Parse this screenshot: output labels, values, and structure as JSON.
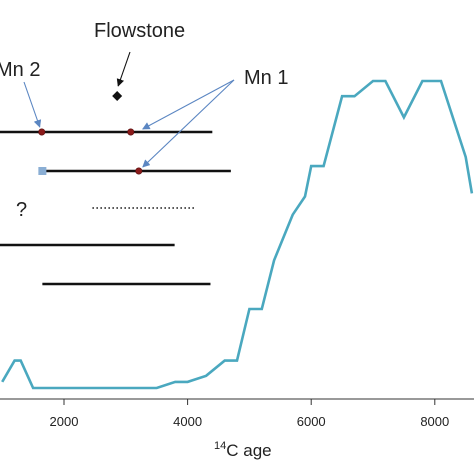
{
  "chart_data": {
    "type": "line",
    "title": "",
    "xlabel_sup": "14",
    "xlabel_rest": "C age",
    "ylabel": "",
    "xlim": [
      1000,
      8600
    ],
    "ylim": [
      0,
      100
    ],
    "x_ticks": [
      2000,
      4000,
      6000,
      8000
    ],
    "grid": false,
    "legend": "none",
    "series": [
      {
        "color": "#4aa8bf",
        "points": [
          [
            1000,
            2
          ],
          [
            1200,
            9
          ],
          [
            1300,
            9
          ],
          [
            1500,
            0
          ],
          [
            2000,
            0
          ],
          [
            2500,
            0
          ],
          [
            3000,
            0
          ],
          [
            3500,
            0
          ],
          [
            3800,
            2
          ],
          [
            4000,
            2
          ],
          [
            4300,
            4
          ],
          [
            4600,
            9
          ],
          [
            4800,
            9
          ],
          [
            5000,
            26
          ],
          [
            5200,
            26
          ],
          [
            5400,
            42
          ],
          [
            5700,
            57
          ],
          [
            5900,
            63
          ],
          [
            6000,
            73
          ],
          [
            6200,
            73
          ],
          [
            6500,
            96
          ],
          [
            6700,
            96
          ],
          [
            7000,
            101
          ],
          [
            7200,
            101
          ],
          [
            7500,
            89
          ],
          [
            7800,
            101
          ],
          [
            8100,
            101
          ],
          [
            8500,
            76
          ],
          [
            8600,
            64
          ]
        ]
      }
    ],
    "timelines": [
      {
        "x_start": 600,
        "x_end": 4400,
        "style": "solid",
        "markers": [
          {
            "x": 1640,
            "shape": "dot",
            "color": "#8b1a1a"
          },
          {
            "x": 3080,
            "shape": "dot",
            "color": "#8b1a1a"
          }
        ]
      },
      {
        "x_start": 1650,
        "x_end": 4700,
        "style": "solid",
        "markers": [
          {
            "x": 1650,
            "shape": "square",
            "color": "#8aaed4"
          },
          {
            "x": 3210,
            "shape": "dot",
            "color": "#8b1a1a"
          }
        ]
      },
      {
        "x_start": 2460,
        "x_end": 4130,
        "style": "dotted",
        "markers": []
      },
      {
        "x_start": 0,
        "x_end": 3790,
        "style": "solid",
        "markers": []
      },
      {
        "x_start": 1650,
        "x_end": 4370,
        "style": "solid",
        "markers": []
      }
    ],
    "flowstone_point": {
      "x": 2860,
      "shape": "diamond",
      "color": "#111111"
    },
    "annotations": {
      "flowstone": "Flowstone",
      "mn2": "Mn 2",
      "mn1": "Mn 1",
      "question": "?"
    }
  },
  "colors": {
    "series": "#4aa8bf",
    "arrow_mn": "#5b86c2",
    "arrow_flowstone": "#111111",
    "timeline": "#111111",
    "marker_dot": "#8b1a1a",
    "marker_square": "#8aaed4"
  }
}
